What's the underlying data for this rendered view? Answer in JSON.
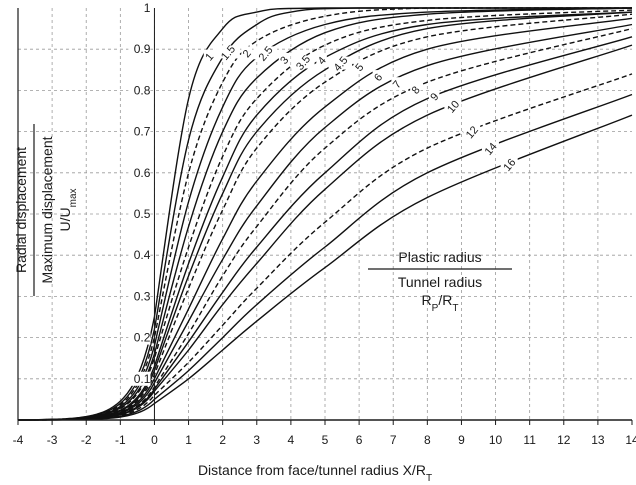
{
  "chart_data": {
    "type": "line",
    "xlabel": "Distance from face/tunnel radius X/R",
    "xlabel_sub": "T",
    "ylabel_top": "Radial displacement",
    "ylabel_bottom": "Maximum displacement",
    "ylabel_ratio": "U/U",
    "ylabel_ratio_sub": "max",
    "xlim": [
      -4,
      14
    ],
    "ylim": [
      0,
      1
    ],
    "grid": true,
    "x_ticks": [
      "-4",
      "-3",
      "-2",
      "-1",
      "0",
      "1",
      "2",
      "3",
      "4",
      "5",
      "6",
      "7",
      "8",
      "9",
      "10",
      "11",
      "12",
      "13",
      "14"
    ],
    "y_ticks": [
      "0.1",
      "0.2",
      "0.3",
      "0.4",
      "0.5",
      "0.6",
      "0.7",
      "0.8",
      "0.9",
      "1"
    ],
    "legend": {
      "numerator": "Plastic radius",
      "denominator": "Tunnel radius",
      "ratio": "R",
      "ratio_sub1": "P",
      "ratio_sep": "/R",
      "ratio_sub2": "T"
    },
    "series": [
      {
        "name": "1",
        "dashed": false,
        "values": [
          [
            0,
            0.25
          ],
          [
            1,
            0.78
          ],
          [
            2,
            0.95
          ],
          [
            3,
            0.99
          ],
          [
            5,
            1.0
          ],
          [
            14,
            1.0
          ]
        ]
      },
      {
        "name": "1.5",
        "dashed": false,
        "values": [
          [
            0,
            0.22
          ],
          [
            1,
            0.68
          ],
          [
            2,
            0.88
          ],
          [
            3,
            0.96
          ],
          [
            4,
            0.99
          ],
          [
            6,
            1.0
          ],
          [
            14,
            1.0
          ]
        ]
      },
      {
        "name": "2",
        "dashed": true,
        "values": [
          [
            0,
            0.2
          ],
          [
            1,
            0.6
          ],
          [
            2,
            0.82
          ],
          [
            3,
            0.92
          ],
          [
            5,
            0.98
          ],
          [
            8,
            1.0
          ],
          [
            14,
            1.0
          ]
        ]
      },
      {
        "name": "2.5",
        "dashed": false,
        "values": [
          [
            0,
            0.18
          ],
          [
            1,
            0.53
          ],
          [
            2,
            0.76
          ],
          [
            3,
            0.88
          ],
          [
            5,
            0.96
          ],
          [
            8,
            0.99
          ],
          [
            14,
            1.0
          ]
        ]
      },
      {
        "name": "3",
        "dashed": false,
        "values": [
          [
            0,
            0.16
          ],
          [
            1,
            0.47
          ],
          [
            2,
            0.7
          ],
          [
            3,
            0.83
          ],
          [
            5,
            0.94
          ],
          [
            8,
            0.985
          ],
          [
            14,
            1.0
          ]
        ]
      },
      {
        "name": "3.5",
        "dashed": true,
        "values": [
          [
            0,
            0.15
          ],
          [
            1,
            0.42
          ],
          [
            2,
            0.64
          ],
          [
            3,
            0.78
          ],
          [
            5,
            0.91
          ],
          [
            8,
            0.97
          ],
          [
            14,
            0.995
          ]
        ]
      },
      {
        "name": "4",
        "dashed": false,
        "values": [
          [
            0,
            0.13
          ],
          [
            1,
            0.38
          ],
          [
            2,
            0.59
          ],
          [
            3,
            0.74
          ],
          [
            5,
            0.88
          ],
          [
            8,
            0.96
          ],
          [
            14,
            0.99
          ]
        ]
      },
      {
        "name": "4.5",
        "dashed": false,
        "values": [
          [
            0,
            0.12
          ],
          [
            1,
            0.35
          ],
          [
            2,
            0.55
          ],
          [
            3,
            0.7
          ],
          [
            5,
            0.85
          ],
          [
            8,
            0.95
          ],
          [
            14,
            0.99
          ]
        ]
      },
      {
        "name": "5",
        "dashed": true,
        "values": [
          [
            0,
            0.11
          ],
          [
            1,
            0.32
          ],
          [
            2,
            0.51
          ],
          [
            3,
            0.66
          ],
          [
            5,
            0.82
          ],
          [
            8,
            0.93
          ],
          [
            14,
            0.985
          ]
        ]
      },
      {
        "name": "6",
        "dashed": false,
        "values": [
          [
            0,
            0.1
          ],
          [
            1,
            0.27
          ],
          [
            2,
            0.44
          ],
          [
            3,
            0.58
          ],
          [
            5,
            0.76
          ],
          [
            8,
            0.9
          ],
          [
            14,
            0.975
          ]
        ]
      },
      {
        "name": "7",
        "dashed": false,
        "values": [
          [
            0,
            0.09
          ],
          [
            1,
            0.24
          ],
          [
            2,
            0.39
          ],
          [
            3,
            0.52
          ],
          [
            5,
            0.71
          ],
          [
            8,
            0.86
          ],
          [
            14,
            0.96
          ]
        ]
      },
      {
        "name": "8",
        "dashed": true,
        "values": [
          [
            0,
            0.08
          ],
          [
            1,
            0.21
          ],
          [
            2,
            0.35
          ],
          [
            3,
            0.47
          ],
          [
            5,
            0.66
          ],
          [
            8,
            0.82
          ],
          [
            14,
            0.95
          ]
        ]
      },
      {
        "name": "9",
        "dashed": false,
        "values": [
          [
            0,
            0.075
          ],
          [
            1,
            0.19
          ],
          [
            2,
            0.31
          ],
          [
            3,
            0.42
          ],
          [
            5,
            0.6
          ],
          [
            8,
            0.78
          ],
          [
            14,
            0.93
          ]
        ]
      },
      {
        "name": "10",
        "dashed": false,
        "values": [
          [
            0,
            0.07
          ],
          [
            1,
            0.17
          ],
          [
            2,
            0.28
          ],
          [
            3,
            0.38
          ],
          [
            5,
            0.56
          ],
          [
            8,
            0.74
          ],
          [
            14,
            0.91
          ]
        ]
      },
      {
        "name": "12",
        "dashed": true,
        "values": [
          [
            0,
            0.06
          ],
          [
            1,
            0.14
          ],
          [
            2,
            0.23
          ],
          [
            3,
            0.32
          ],
          [
            5,
            0.48
          ],
          [
            8,
            0.66
          ],
          [
            14,
            0.84
          ]
        ]
      },
      {
        "name": "14",
        "dashed": false,
        "values": [
          [
            0,
            0.05
          ],
          [
            1,
            0.12
          ],
          [
            2,
            0.2
          ],
          [
            3,
            0.28
          ],
          [
            5,
            0.42
          ],
          [
            8,
            0.6
          ],
          [
            14,
            0.79
          ]
        ]
      },
      {
        "name": "16",
        "dashed": false,
        "values": [
          [
            0,
            0.04
          ],
          [
            1,
            0.1
          ],
          [
            2,
            0.17
          ],
          [
            3,
            0.24
          ],
          [
            5,
            0.37
          ],
          [
            8,
            0.54
          ],
          [
            14,
            0.74
          ]
        ]
      }
    ]
  }
}
